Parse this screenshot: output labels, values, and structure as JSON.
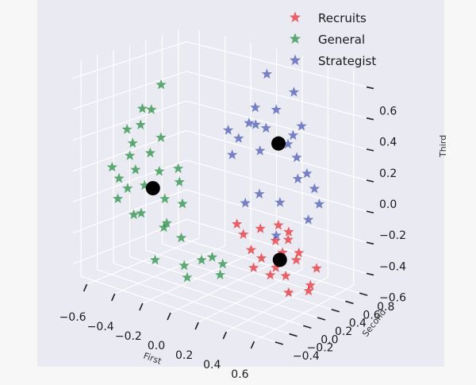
{
  "chart_data": {
    "type": "scatter",
    "projection": "3d",
    "marker": "star",
    "xlabel": "First",
    "ylabel": "Second",
    "zlabel": "Third",
    "xlim": [
      -0.7,
      0.7
    ],
    "ylim": [
      -0.5,
      0.9
    ],
    "zlim": [
      -0.7,
      0.7
    ],
    "xticks": [
      "−0.6",
      "−0.4",
      "−0.2",
      "0.0",
      "0.2",
      "0.4",
      "0.6"
    ],
    "yticks": [
      "−0.4",
      "−0.2",
      "0.0",
      "0.2",
      "0.4",
      "0.6",
      "0.8"
    ],
    "zticks": [
      "−0.6",
      "−0.4",
      "−0.2",
      "0.0",
      "0.2",
      "0.4",
      "0.6"
    ],
    "grid": true,
    "legend_position": "top-right",
    "colors": {
      "panel": "#e9eaf2",
      "grid": "#ffffff",
      "background": "#f7f7f7",
      "centroid": "#000000"
    },
    "series": [
      {
        "name": "Recruits",
        "color": "#e8242b",
        "points": [
          [
            0.48,
            0.6,
            -0.55
          ],
          [
            0.43,
            0.58,
            -0.7
          ],
          [
            0.46,
            0.55,
            -0.65
          ],
          [
            0.35,
            0.45,
            -0.7
          ],
          [
            0.3,
            0.5,
            -0.62
          ],
          [
            0.38,
            0.5,
            -0.5
          ],
          [
            0.32,
            0.42,
            -0.45
          ],
          [
            0.28,
            0.4,
            -0.55
          ],
          [
            0.25,
            0.45,
            -0.4
          ],
          [
            0.2,
            0.35,
            -0.5
          ],
          [
            0.15,
            0.3,
            -0.45
          ],
          [
            0.22,
            0.3,
            -0.3
          ],
          [
            0.12,
            0.25,
            -0.35
          ],
          [
            0.3,
            0.4,
            -0.28
          ],
          [
            0.35,
            0.45,
            -0.32
          ],
          [
            0.1,
            0.2,
            -0.28
          ],
          [
            0.4,
            0.5,
            -0.45
          ],
          [
            0.25,
            0.38,
            -0.6
          ],
          [
            0.18,
            0.28,
            -0.55
          ],
          [
            0.33,
            0.48,
            -0.38
          ]
        ],
        "centroid": [
          0.3,
          0.42,
          -0.5
        ]
      },
      {
        "name": "General",
        "color": "#1e8a3c",
        "points": [
          [
            -0.5,
            -0.1,
            0.15
          ],
          [
            -0.55,
            -0.05,
            0.05
          ],
          [
            -0.45,
            -0.15,
            0.0
          ],
          [
            -0.6,
            -0.1,
            -0.1
          ],
          [
            -0.4,
            -0.05,
            0.1
          ],
          [
            -0.35,
            0.0,
            0.2
          ],
          [
            -0.5,
            0.0,
            0.25
          ],
          [
            -0.45,
            0.05,
            0.35
          ],
          [
            -0.42,
            0.1,
            -0.05
          ],
          [
            -0.55,
            -0.2,
            -0.2
          ],
          [
            -0.48,
            -0.12,
            -0.3
          ],
          [
            -0.38,
            -0.2,
            -0.25
          ],
          [
            -0.3,
            -0.05,
            -0.35
          ],
          [
            -0.25,
            -0.1,
            -0.3
          ],
          [
            -0.35,
            0.05,
            -0.2
          ],
          [
            -0.5,
            0.05,
            -0.15
          ],
          [
            -0.2,
            0.0,
            -0.4
          ],
          [
            -0.05,
            0.0,
            -0.5
          ],
          [
            0.0,
            0.05,
            -0.48
          ],
          [
            0.05,
            0.1,
            -0.52
          ],
          [
            -0.1,
            -0.1,
            -0.6
          ],
          [
            -0.15,
            -0.05,
            -0.55
          ],
          [
            0.02,
            0.12,
            -0.6
          ],
          [
            -0.25,
            -0.25,
            -0.5
          ],
          [
            -0.32,
            -0.05,
            0.55
          ],
          [
            -0.4,
            -0.15,
            0.4
          ],
          [
            -0.6,
            0.0,
            0.2
          ],
          [
            -0.58,
            -0.22,
            0.0
          ],
          [
            -0.45,
            -0.25,
            -0.1
          ],
          [
            -0.28,
            0.1,
            0.0
          ],
          [
            -0.3,
            0.15,
            -0.1
          ],
          [
            -0.22,
            0.05,
            -0.2
          ]
        ],
        "centroid": [
          -0.38,
          -0.05,
          -0.12
        ]
      },
      {
        "name": "Strategist",
        "color": "#4352b2",
        "points": [
          [
            0.1,
            0.6,
            0.6
          ],
          [
            0.25,
            0.7,
            0.5
          ],
          [
            0.2,
            0.55,
            0.4
          ],
          [
            0.05,
            0.45,
            0.3
          ],
          [
            0.0,
            0.4,
            0.2
          ],
          [
            -0.05,
            0.35,
            0.25
          ],
          [
            0.1,
            0.45,
            0.3
          ],
          [
            0.15,
            0.5,
            0.28
          ],
          [
            0.3,
            0.65,
            0.1
          ],
          [
            0.35,
            0.7,
            0.0
          ],
          [
            0.38,
            0.75,
            -0.1
          ],
          [
            0.4,
            0.78,
            -0.2
          ],
          [
            0.35,
            0.72,
            -0.3
          ],
          [
            0.2,
            0.6,
            -0.2
          ],
          [
            0.1,
            0.5,
            -0.15
          ],
          [
            0.2,
            0.55,
            -0.4
          ],
          [
            0.05,
            0.4,
            -0.2
          ],
          [
            0.3,
            0.6,
            0.25
          ],
          [
            0.25,
            0.62,
            0.18
          ],
          [
            0.15,
            0.42,
            0.15
          ],
          [
            -0.02,
            0.35,
            0.1
          ],
          [
            0.32,
            0.68,
            0.3
          ],
          [
            0.28,
            0.7,
            -0.05
          ],
          [
            0.08,
            0.48,
            0.4
          ]
        ],
        "centroid": [
          0.2,
          0.58,
          0.18
        ]
      }
    ]
  }
}
